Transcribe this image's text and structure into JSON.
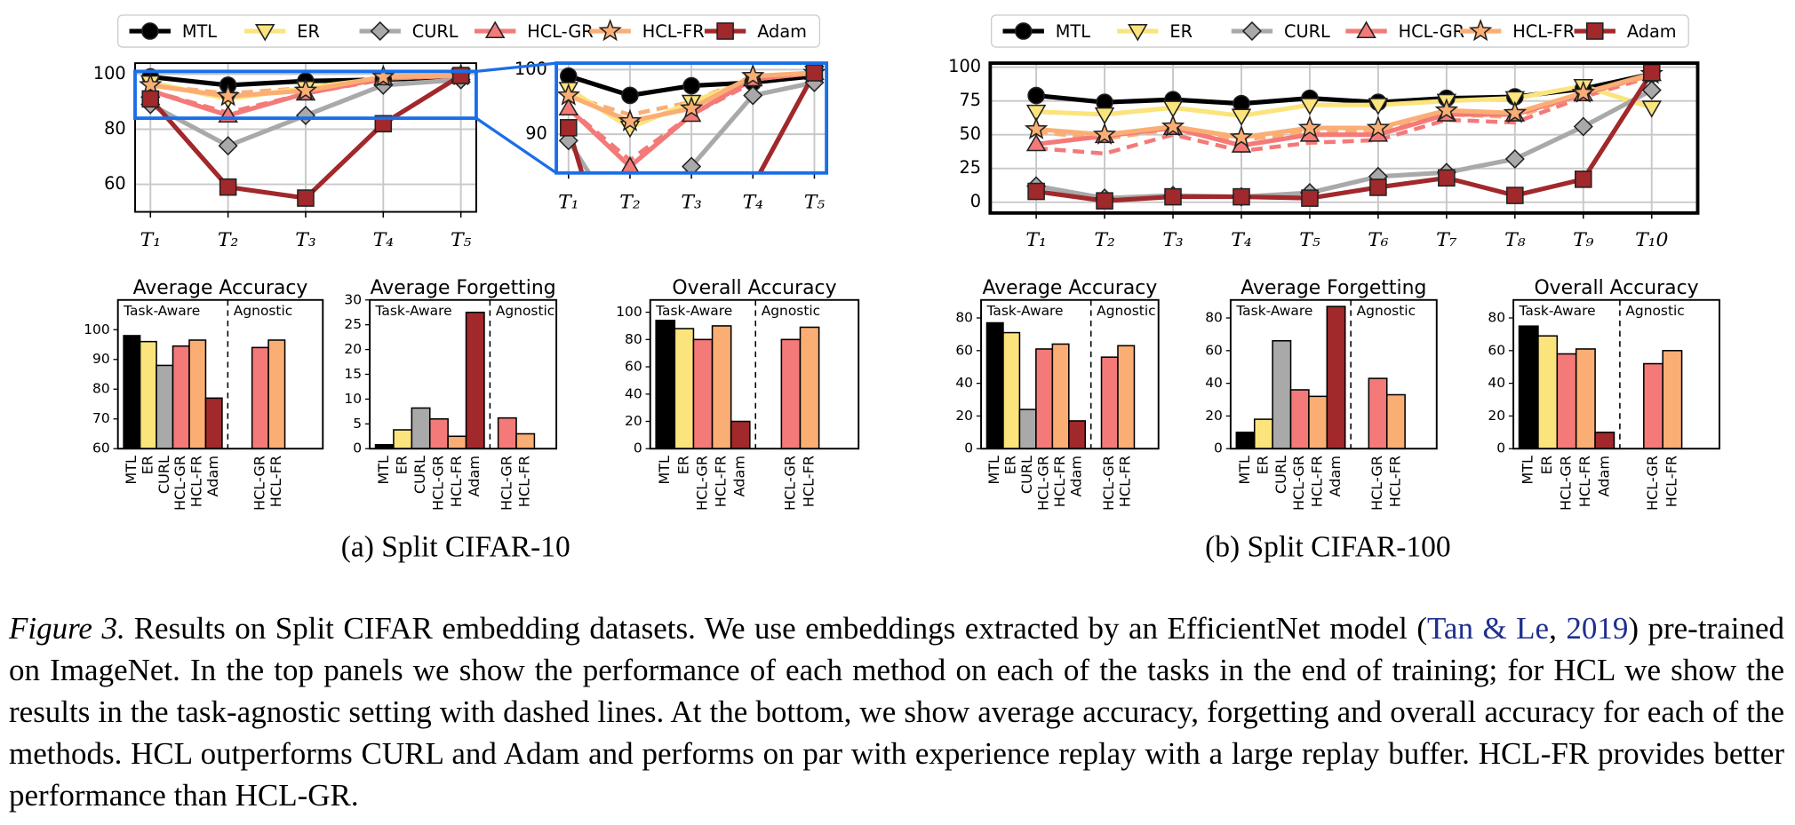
{
  "chart_data": [
    {
      "type": "line",
      "categories": [
        "T₁",
        "T₂",
        "T₃",
        "T₄",
        "T₅"
      ],
      "ylim": [
        50,
        104
      ],
      "yticks": [
        60,
        80,
        100
      ],
      "grid": true,
      "inset": {
        "ylim": [
          84,
          101
        ],
        "yticks": [
          90,
          100
        ]
      },
      "series": [
        {
          "name": "MTL",
          "color": "#000000",
          "marker": "o",
          "values": [
            99,
            96,
            97.5,
            98,
            99
          ]
        },
        {
          "name": "ER",
          "color": "#fbe47c",
          "marker": "v",
          "values": [
            97,
            91,
            95,
            98.5,
            99.5
          ]
        },
        {
          "name": "CURL",
          "color": "#a9a9a9",
          "marker": "D",
          "values": [
            89,
            74,
            85,
            96,
            98
          ]
        },
        {
          "name": "HCL-GR",
          "color": "#f37a78",
          "marker": "^",
          "values": [
            94,
            85,
            93,
            98.5,
            99.5
          ],
          "agnostic_values": [
            94,
            86,
            93,
            98,
            99
          ]
        },
        {
          "name": "HCL-FR",
          "color": "#fbae74",
          "marker": "*",
          "values": [
            96,
            92,
            94,
            99,
            99.5
          ],
          "agnostic_values": [
            96,
            93,
            95,
            99,
            99.5
          ]
        },
        {
          "name": "Adam",
          "color": "#a1282b",
          "marker": "s",
          "values": [
            91,
            59,
            55,
            82,
            99.5
          ]
        }
      ]
    },
    {
      "type": "line",
      "categories": [
        "T₁",
        "T₂",
        "T₃",
        "T₄",
        "T₅",
        "T₆",
        "T₇",
        "T₈",
        "T₉",
        "T₁0"
      ],
      "ylim": [
        -8,
        103
      ],
      "yticks": [
        0,
        25,
        50,
        75,
        100
      ],
      "grid": true,
      "series": [
        {
          "name": "MTL",
          "color": "#000000",
          "marker": "o",
          "values": [
            79,
            74,
            76,
            73,
            77,
            74,
            77,
            78,
            84,
            95
          ]
        },
        {
          "name": "ER",
          "color": "#fbe47c",
          "marker": "v",
          "values": [
            67,
            65,
            70,
            64,
            72,
            72,
            75,
            77,
            86,
            70
          ]
        },
        {
          "name": "CURL",
          "color": "#a9a9a9",
          "marker": "D",
          "values": [
            12,
            3,
            5,
            4,
            7,
            19,
            22,
            32,
            56,
            83
          ]
        },
        {
          "name": "HCL-GR",
          "color": "#f37a78",
          "marker": "^",
          "values": [
            43,
            49,
            55,
            42,
            50,
            50,
            65,
            65,
            80,
            95
          ],
          "agnostic_values": [
            40,
            36,
            50,
            38,
            44,
            46,
            61,
            59,
            78,
            93
          ]
        },
        {
          "name": "HCL-FR",
          "color": "#fbae74",
          "marker": "*",
          "values": [
            54,
            50,
            56,
            48,
            55,
            55,
            68,
            66,
            81,
            95
          ],
          "agnostic_values": [
            52,
            47,
            54,
            46,
            52,
            53,
            65,
            63,
            80,
            94
          ]
        },
        {
          "name": "Adam",
          "color": "#a1282b",
          "marker": "s",
          "values": [
            8,
            1,
            4,
            4,
            3,
            11,
            18,
            5,
            17,
            96
          ]
        }
      ]
    },
    {
      "type": "bar",
      "title": "Average Accuracy",
      "ylim": [
        60,
        110
      ],
      "yticks": [
        60,
        70,
        80,
        90,
        100
      ],
      "sections": [
        {
          "label": "Task-Aware",
          "categories": [
            "MTL",
            "ER",
            "CURL",
            "HCL-GR",
            "HCL-FR",
            "Adam"
          ],
          "values": [
            98,
            96,
            88,
            94.5,
            96.5,
            77
          ]
        },
        {
          "label": "Agnostic",
          "categories": [
            "HCL-GR",
            "HCL-FR"
          ],
          "values": [
            94,
            96.5
          ]
        }
      ]
    },
    {
      "type": "bar",
      "title": "Average Forgetting",
      "ylim": [
        0,
        30
      ],
      "yticks": [
        0,
        5,
        10,
        15,
        20,
        25,
        30
      ],
      "sections": [
        {
          "label": "Task-Aware",
          "categories": [
            "MTL",
            "ER",
            "CURL",
            "HCL-GR",
            "HCL-FR",
            "Adam"
          ],
          "values": [
            0.8,
            3.8,
            8.2,
            6,
            2.5,
            27.5
          ]
        },
        {
          "label": "Agnostic",
          "categories": [
            "HCL-GR",
            "HCL-FR"
          ],
          "values": [
            6.2,
            3
          ]
        }
      ]
    },
    {
      "type": "bar",
      "title": "Overall Accuracy",
      "ylim": [
        0,
        109
      ],
      "yticks": [
        0,
        20,
        40,
        60,
        80,
        100
      ],
      "sections": [
        {
          "label": "Task-Aware",
          "categories": [
            "MTL",
            "ER",
            "HCL-GR",
            "HCL-FR",
            "Adam"
          ],
          "values": [
            94,
            88,
            80,
            90,
            20
          ]
        },
        {
          "label": "Agnostic",
          "categories": [
            "HCL-GR",
            "HCL-FR"
          ],
          "values": [
            80,
            89
          ]
        }
      ]
    },
    {
      "type": "bar",
      "title": "Average Accuracy",
      "ylim": [
        0,
        91
      ],
      "yticks": [
        0,
        20,
        40,
        60,
        80
      ],
      "sections": [
        {
          "label": "Task-Aware",
          "categories": [
            "MTL",
            "ER",
            "CURL",
            "HCL-GR",
            "HCL-FR",
            "Adam"
          ],
          "values": [
            77,
            71,
            24,
            61,
            64,
            17
          ]
        },
        {
          "label": "Agnostic",
          "categories": [
            "HCL-GR",
            "HCL-FR"
          ],
          "values": [
            56,
            63
          ]
        }
      ]
    },
    {
      "type": "bar",
      "title": "Average Forgetting",
      "ylim": [
        0,
        91
      ],
      "yticks": [
        0,
        20,
        40,
        60,
        80
      ],
      "sections": [
        {
          "label": "Task-Aware",
          "categories": [
            "MTL",
            "ER",
            "CURL",
            "HCL-GR",
            "HCL-FR",
            "Adam"
          ],
          "values": [
            10,
            18,
            66,
            36,
            32,
            87
          ]
        },
        {
          "label": "Agnostic",
          "categories": [
            "HCL-GR",
            "HCL-FR"
          ],
          "values": [
            43,
            33
          ]
        }
      ]
    },
    {
      "type": "bar",
      "title": "Overall Accuracy",
      "ylim": [
        0,
        91
      ],
      "yticks": [
        0,
        20,
        40,
        60,
        80
      ],
      "sections": [
        {
          "label": "Task-Aware",
          "categories": [
            "MTL",
            "ER",
            "HCL-GR",
            "HCL-FR",
            "Adam"
          ],
          "values": [
            75,
            69,
            58,
            61,
            10
          ]
        },
        {
          "label": "Agnostic",
          "categories": [
            "HCL-GR",
            "HCL-FR"
          ],
          "values": [
            52,
            60
          ]
        }
      ]
    }
  ],
  "subcaptions": [
    "(a) Split CIFAR-10",
    "(b) Split CIFAR-100"
  ],
  "caption": {
    "label": "Figure 3.",
    "parts": [
      "Results on Split CIFAR embedding datasets.  We use embeddings extracted by an EfficientNet model (",
      "Tan & Le",
      ", ",
      "2019",
      ") pre-trained on ImageNet. In the top panels we show the performance of each method on each of the tasks in the end of training; for HCL we show the results in the task-agnostic setting with dashed lines. At the bottom, we show average accuracy, forgetting and overall accuracy for each of the methods. HCL outperforms CURL and Adam and performs on par with experience replay with a large replay buffer. HCL-FR provides better performance than HCL-GR."
    ]
  }
}
